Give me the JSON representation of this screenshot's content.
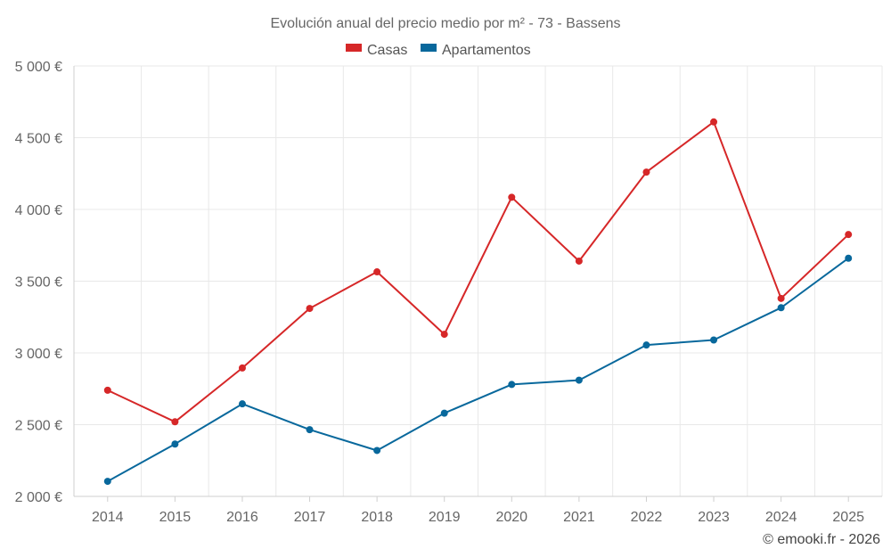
{
  "chart_data": {
    "type": "line",
    "title": "Evolución anual del precio medio por m² - 73 - Bassens",
    "categories": [
      "2014",
      "2015",
      "2016",
      "2017",
      "2018",
      "2019",
      "2020",
      "2021",
      "2022",
      "2023",
      "2024",
      "2025"
    ],
    "series": [
      {
        "name": "Casas",
        "color": "#d62728",
        "values": [
          2740,
          2520,
          2895,
          3310,
          3565,
          3130,
          4085,
          3640,
          4260,
          4610,
          3380,
          3825
        ]
      },
      {
        "name": "Apartamentos",
        "color": "#08689c",
        "values": [
          2105,
          2365,
          2645,
          2465,
          2320,
          2580,
          2780,
          2810,
          3055,
          3090,
          3315,
          3660
        ]
      }
    ],
    "ylim": [
      2000,
      5000
    ],
    "yticks": [
      {
        "value": 2000,
        "label": "2 000 €"
      },
      {
        "value": 2500,
        "label": "2 500 €"
      },
      {
        "value": 3000,
        "label": "3 000 €"
      },
      {
        "value": 3500,
        "label": "3 500 €"
      },
      {
        "value": 4000,
        "label": "4 000 €"
      },
      {
        "value": 4500,
        "label": "4 500 €"
      },
      {
        "value": 5000,
        "label": "5 000 €"
      }
    ],
    "xlabel": "",
    "ylabel": "",
    "grid": true,
    "legend_position": "top-center",
    "credit": "© emooki.fr - 2026"
  }
}
